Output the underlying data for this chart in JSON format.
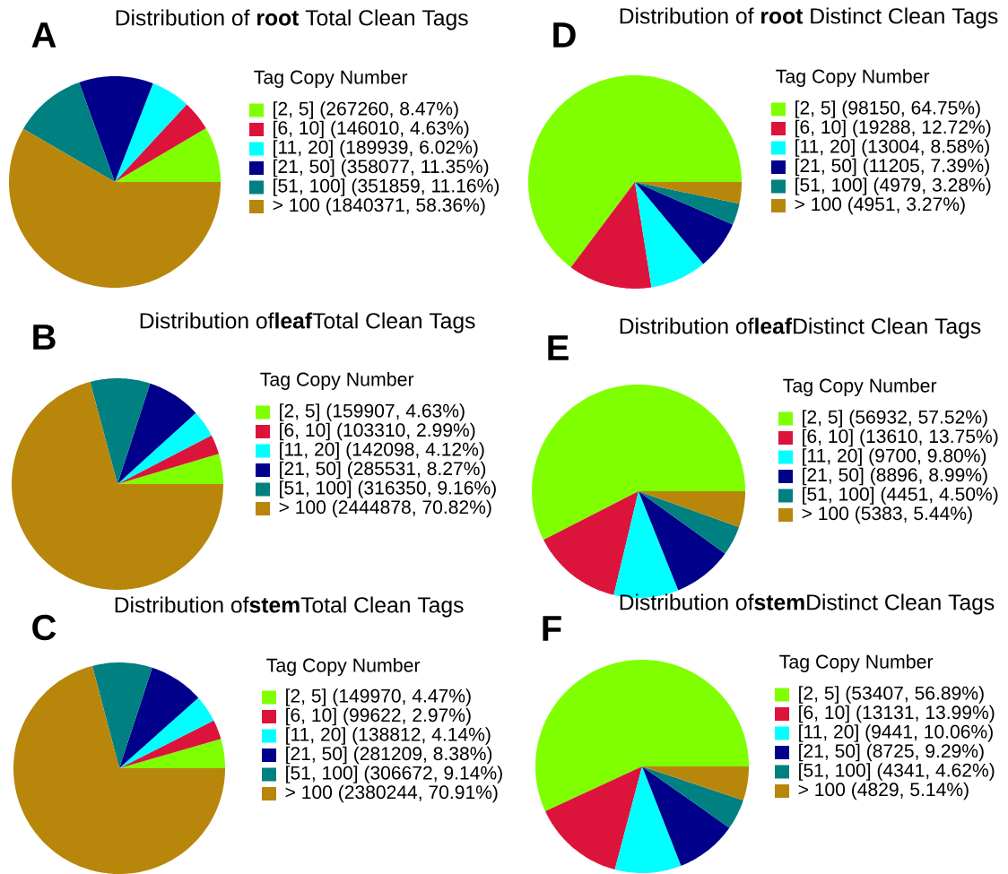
{
  "chart_data": [
    {
      "type": "pie",
      "title": "Distribution of **root** Total Clean Tags",
      "legend_title": "Tag Copy Number",
      "legend": "right",
      "annotations": [
        "A"
      ],
      "categories": [
        "[2, 5] (267260, 8.47%)",
        "[6, 10] (146010, 4.63%)",
        "[11, 20] (189939, 6.02%)",
        "[21, 50] (358077, 11.35%)",
        "[51, 100] (351859, 11.16%)",
        "> 100 (1840371, 58.36%)"
      ],
      "values": [
        8.47,
        4.63,
        6.02,
        11.35,
        11.16,
        58.36
      ],
      "colors": [
        "#80ff00",
        "#dc143c",
        "#00ffff",
        "#00008b",
        "#008080",
        "#b8860b"
      ]
    },
    {
      "type": "pie",
      "title": "Distribution of**leaf**Total Clean Tags",
      "legend_title": "Tag Copy Number",
      "legend": "right",
      "annotations": [
        "B"
      ],
      "categories": [
        "[2, 5] (159907, 4.63%)",
        "[6, 10] (103310, 2.99%)",
        "[11, 20] (142098, 4.12%)",
        "[21, 50] (285531, 8.27%)",
        "[51, 100] (316350, 9.16%)",
        "> 100 (2444878, 70.82%)"
      ],
      "values": [
        4.63,
        2.99,
        4.12,
        8.27,
        9.16,
        70.82
      ],
      "colors": [
        "#80ff00",
        "#dc143c",
        "#00ffff",
        "#00008b",
        "#008080",
        "#b8860b"
      ]
    },
    {
      "type": "pie",
      "title": "Distribution of**stem**Total Clean Tags",
      "legend_title": "Tag Copy Number",
      "legend": "right",
      "annotations": [
        "C"
      ],
      "categories": [
        "[2, 5] (149970, 4.47%)",
        "[6, 10] (99622, 2.97%)",
        "[11, 20] (138812, 4.14%)",
        "[21, 50] (281209, 8.38%)",
        "[51, 100] (306672, 9.14%)",
        "> 100 (2380244, 70.91%)"
      ],
      "values": [
        4.47,
        2.97,
        4.14,
        8.38,
        9.14,
        70.91
      ],
      "colors": [
        "#80ff00",
        "#dc143c",
        "#00ffff",
        "#00008b",
        "#008080",
        "#b8860b"
      ]
    },
    {
      "type": "pie",
      "title": "Distribution of **root** Distinct Clean Tags",
      "legend_title": "Tag Copy Number",
      "legend": "right",
      "annotations": [
        "D"
      ],
      "categories": [
        "[2, 5] (98150, 64.75%)",
        "[6, 10] (19288, 12.72%)",
        "[11, 20] (13004, 8.58%)",
        "[21, 50] (11205, 7.39%)",
        "[51, 100] (4979, 3.28%)",
        "> 100 (4951, 3.27%)"
      ],
      "values": [
        64.75,
        12.72,
        8.58,
        7.39,
        3.28,
        3.27
      ],
      "colors": [
        "#80ff00",
        "#dc143c",
        "#00ffff",
        "#00008b",
        "#008080",
        "#b8860b"
      ]
    },
    {
      "type": "pie",
      "title": "Distribution of**leaf**Distinct Clean Tags",
      "legend_title": "Tag Copy Number",
      "legend": "right",
      "annotations": [
        "E"
      ],
      "categories": [
        "[2, 5] (56932, 57.52%)",
        "[6, 10] (13610, 13.75%)",
        "[11, 20] (9700, 9.80%)",
        "[21, 50] (8896, 8.99%)",
        "[51, 100] (4451, 4.50%)",
        "> 100 (5383, 5.44%)"
      ],
      "values": [
        57.52,
        13.75,
        9.8,
        8.99,
        4.5,
        5.44
      ],
      "colors": [
        "#80ff00",
        "#dc143c",
        "#00ffff",
        "#00008b",
        "#008080",
        "#b8860b"
      ]
    },
    {
      "type": "pie",
      "title": "Distribution of**stem**Distinct Clean Tags",
      "legend_title": "Tag Copy Number",
      "legend": "right",
      "annotations": [
        "F"
      ],
      "categories": [
        "[2, 5] (53407, 56.89%)",
        "[6, 10] (13131, 13.99%)",
        "[11, 20] (9441, 10.06%)",
        "[21, 50] (8725, 9.29%)",
        "[51, 100] (4341, 4.62%)",
        "> 100 (4829, 5.14%)"
      ],
      "values": [
        56.89,
        13.99,
        10.06,
        9.29,
        4.62,
        5.14
      ],
      "colors": [
        "#80ff00",
        "#dc143c",
        "#00ffff",
        "#00008b",
        "#008080",
        "#b8860b"
      ]
    }
  ]
}
